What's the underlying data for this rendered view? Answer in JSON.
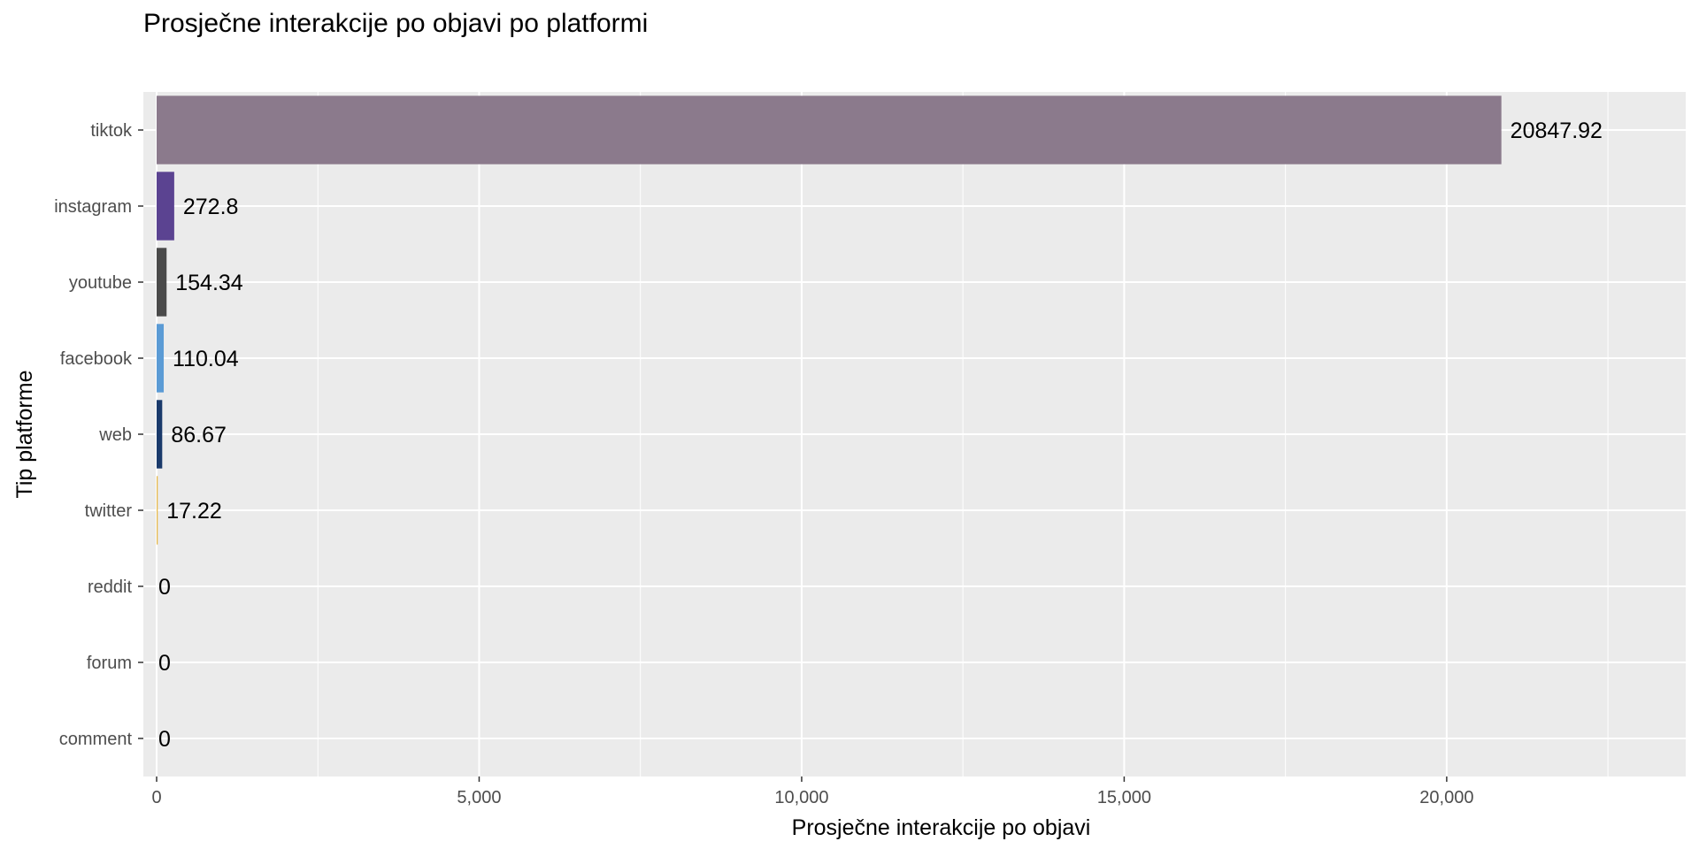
{
  "chart_data": {
    "type": "bar",
    "orientation": "horizontal",
    "title": "Prosječne interakcije po objavi po platformi",
    "xlabel": "Prosječne interakcije po objavi",
    "ylabel": "Tip platforme",
    "categories": [
      "tiktok",
      "instagram",
      "youtube",
      "facebook",
      "web",
      "twitter",
      "reddit",
      "forum",
      "comment"
    ],
    "values": [
      20847.92,
      272.8,
      154.34,
      110.04,
      86.67,
      17.22,
      0,
      0,
      0
    ],
    "data_labels": [
      "20847.92",
      "272.8",
      "154.34",
      "110.04",
      "86.67",
      "17.22",
      "0",
      "0",
      "0"
    ],
    "bar_colors": [
      "#8b7a8c",
      "#5b4391",
      "#4a4a4a",
      "#5b9bd5",
      "#1a3a6b",
      "#e6b84a",
      "#8b7a8c",
      "#8b7a8c",
      "#8b7a8c"
    ],
    "xlim": [
      0,
      23500
    ],
    "x_ticks": [
      0,
      5000,
      10000,
      15000,
      20000
    ],
    "x_tick_labels": [
      "0",
      "5,000",
      "10,000",
      "15,000",
      "20,000"
    ],
    "grid": true,
    "legend": "none",
    "panel_background": "#ebebeb",
    "grid_color": "#ffffff"
  }
}
